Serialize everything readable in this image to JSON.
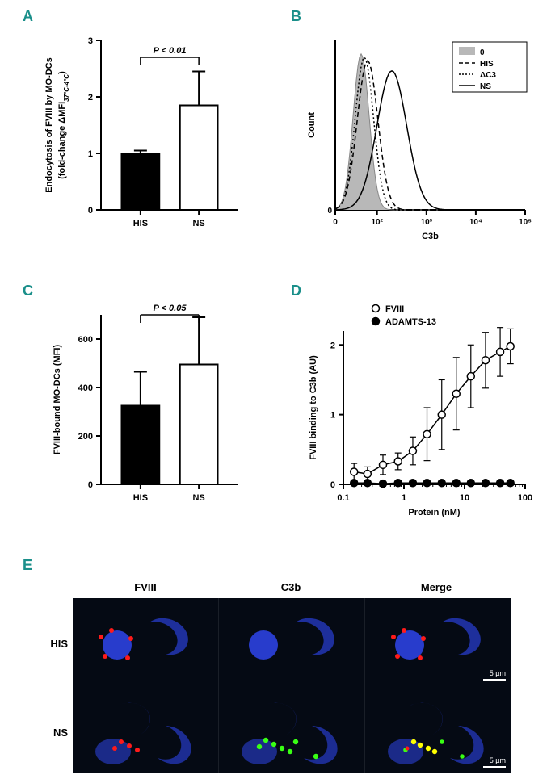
{
  "labels": {
    "A": "A",
    "B": "B",
    "C": "C",
    "D": "D",
    "E": "E",
    "color_label": "#1a8f8a"
  },
  "panelA": {
    "type": "bar",
    "ylabel_line1": "Endocytosis of FVIII by MO-DCs",
    "ylabel_line2": "(fold-change ΔMFI",
    "ylabel_sub": "37°C-4°C",
    "ylabel_close": ")",
    "ylim": [
      0,
      3
    ],
    "yticks": [
      0,
      1,
      2,
      3
    ],
    "categories": [
      "HIS",
      "NS"
    ],
    "bars": [
      {
        "label": "HIS",
        "value": 1.0,
        "err": 0.05,
        "fill": "#000000"
      },
      {
        "label": "NS",
        "value": 1.85,
        "err": 0.6,
        "fill": "#ffffff"
      }
    ],
    "pvalue": "P < 0.01",
    "axis_fontsize": 11,
    "label_fontsize": 11,
    "bar_width": 0.55,
    "stroke": "#000000"
  },
  "panelB": {
    "type": "histogram-overlay",
    "xlabel": "C3b",
    "ylabel": "Count",
    "xticks": [
      0,
      100,
      1000,
      10000,
      100000
    ],
    "xtick_labels": [
      "0",
      "10²",
      "10³",
      "10⁴",
      "10⁵"
    ],
    "legend": [
      {
        "name": "0",
        "style": "filled",
        "color": "#b8b8b8"
      },
      {
        "name": "HIS",
        "style": "dashed",
        "color": "#000000"
      },
      {
        "name": "ΔC3",
        "style": "dotted",
        "color": "#000000"
      },
      {
        "name": "NS",
        "style": "solid",
        "color": "#000000"
      }
    ],
    "axis_fontsize": 11
  },
  "panelC": {
    "type": "bar",
    "ylabel": "FVIII-bound MO-DCs (MFI)",
    "ylim": [
      0,
      700
    ],
    "yticks": [
      0,
      200,
      400,
      600
    ],
    "categories": [
      "HIS",
      "NS"
    ],
    "bars": [
      {
        "label": "HIS",
        "value": 325,
        "err": 140,
        "fill": "#000000"
      },
      {
        "label": "NS",
        "value": 495,
        "err": 195,
        "fill": "#ffffff"
      }
    ],
    "pvalue": "P < 0.05",
    "axis_fontsize": 11,
    "bar_width": 0.55,
    "stroke": "#000000"
  },
  "panelD": {
    "type": "line-log-x",
    "xlabel": "Protein (nM)",
    "ylabel": "FVIII binding to C3b (AU)",
    "xlim": [
      0.1,
      100
    ],
    "xticks": [
      0.1,
      1,
      10,
      100
    ],
    "xtick_labels": [
      "0.1",
      "1",
      "10",
      "100"
    ],
    "ylim": [
      0,
      2.2
    ],
    "yticks": [
      0,
      1,
      2
    ],
    "series": [
      {
        "name": "FVIII",
        "marker": "open-circle",
        "color": "#000000",
        "fill": "#ffffff",
        "x": [
          0.15,
          0.25,
          0.45,
          0.8,
          1.4,
          2.4,
          4.2,
          7.3,
          12.7,
          22.2,
          38.7,
          57.0
        ],
        "y": [
          0.18,
          0.15,
          0.28,
          0.33,
          0.48,
          0.72,
          1.0,
          1.3,
          1.55,
          1.78,
          1.9,
          1.98
        ],
        "yerr": [
          0.12,
          0.1,
          0.14,
          0.12,
          0.2,
          0.38,
          0.5,
          0.52,
          0.45,
          0.4,
          0.35,
          0.25
        ]
      },
      {
        "name": "ADAMTS-13",
        "marker": "filled-circle",
        "color": "#000000",
        "fill": "#000000",
        "x": [
          0.15,
          0.25,
          0.45,
          0.8,
          1.4,
          2.4,
          4.2,
          7.3,
          12.7,
          22.2,
          38.7,
          57.0
        ],
        "y": [
          0.02,
          0.02,
          0.01,
          0.02,
          0.02,
          0.02,
          0.02,
          0.02,
          0.02,
          0.02,
          0.02,
          0.02
        ],
        "yerr": [
          0,
          0,
          0,
          0,
          0,
          0,
          0,
          0,
          0,
          0,
          0,
          0
        ]
      }
    ],
    "axis_fontsize": 11
  },
  "panelE": {
    "type": "microscopy-grid",
    "columns": [
      "FVIII",
      "C3b",
      "Merge"
    ],
    "rows": [
      "HIS",
      "NS"
    ],
    "scale_label": "5 µm",
    "background": "#050a14",
    "colors": {
      "nucleus": "#2a3fd6",
      "fviii": "#ff1a1a",
      "c3b": "#39ff14",
      "merge_overlap": "#ffff00"
    }
  }
}
